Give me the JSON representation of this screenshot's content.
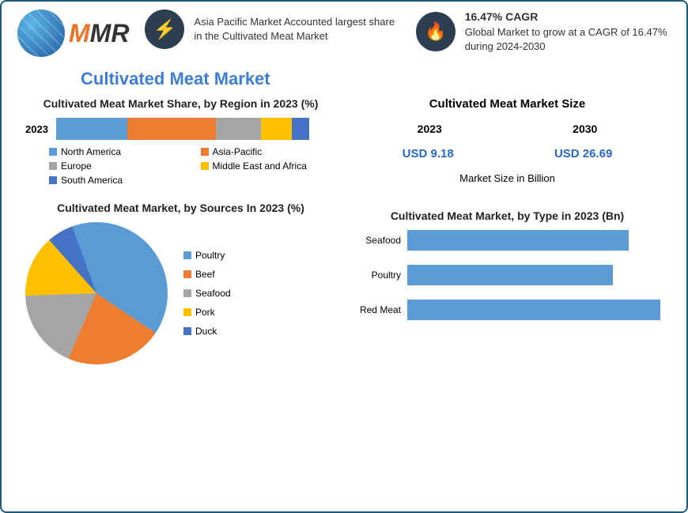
{
  "logo_text": "MMR",
  "header_info1": "Asia Pacific Market Accounted largest share in the Cultivated Meat Market",
  "header_info2_title": "16.47% CAGR",
  "header_info2_body": "Global Market to grow at a CAGR of 16.47% during 2024-2030",
  "main_title": "Cultivated Meat Market",
  "region_chart": {
    "title": "Cultivated Meat Market Share, by Region in 2023 (%)",
    "year_label": "2023",
    "segments": [
      {
        "name": "North America",
        "color": "#5b9bd5",
        "pct": 28
      },
      {
        "name": "Asia-Pacific",
        "color": "#ed7d31",
        "pct": 35
      },
      {
        "name": "Europe",
        "color": "#a5a5a5",
        "pct": 18
      },
      {
        "name": "Middle East and Africa",
        "color": "#ffc000",
        "pct": 12
      },
      {
        "name": "South America",
        "color": "#4472c4",
        "pct": 7
      }
    ]
  },
  "market_size": {
    "title": "Cultivated Meat Market Size",
    "year1": "2023",
    "year2": "2030",
    "val1": "USD 9.18",
    "val2": "USD 26.69",
    "note": "Market Size in Billion"
  },
  "sources_chart": {
    "title": "Cultivated Meat Market, by Sources In 2023 (%)",
    "slices": [
      {
        "name": "Poultry",
        "color": "#5b9bd5",
        "pct": 40
      },
      {
        "name": "Beef",
        "color": "#ed7d31",
        "pct": 22
      },
      {
        "name": "Seafood",
        "color": "#a5a5a5",
        "pct": 18
      },
      {
        "name": "Pork",
        "color": "#ffc000",
        "pct": 14
      },
      {
        "name": "Duck",
        "color": "#4472c4",
        "pct": 6
      }
    ]
  },
  "type_chart": {
    "title": "Cultivated Meat Market, by Type in 2023 (Bn)",
    "bars": [
      {
        "name": "Seafood",
        "value": 280,
        "color": "#5b9bd5"
      },
      {
        "name": "Poultry",
        "value": 260,
        "color": "#5b9bd5"
      },
      {
        "name": "Red Meat",
        "value": 320,
        "color": "#5b9bd5"
      }
    ],
    "max_width": 340
  },
  "colors": {
    "border": "#1a5a7a",
    "title": "#3b7dd8",
    "icon_bg": "#2c3e50",
    "value": "#2968c8"
  }
}
